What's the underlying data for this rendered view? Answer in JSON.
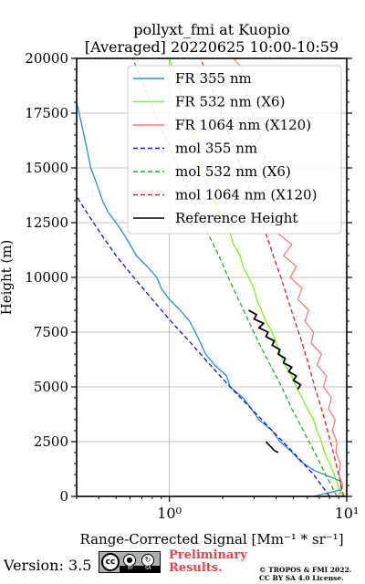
{
  "chart_data": {
    "type": "line",
    "title_line1": "pollyxt_fmi at Kuopio",
    "title_line2": "[Averaged] 20220625 10:00-10:59",
    "xlabel": "Range-Corrected Signal [Mm⁻¹ * sr⁻¹]",
    "ylabel": "Height (m)",
    "x_scale": "log",
    "xlim": [
      0.3,
      10
    ],
    "ylim": [
      0,
      20000
    ],
    "x_ticks": [
      1,
      10
    ],
    "x_tick_labels": [
      "10⁰",
      "10¹"
    ],
    "y_ticks": [
      0,
      2500,
      5000,
      7500,
      10000,
      12500,
      15000,
      17500,
      20000
    ],
    "y_tick_labels": [
      "0",
      "2500",
      "5000",
      "7500",
      "10000",
      "12500",
      "15000",
      "17500",
      "20000"
    ],
    "grid": true,
    "legend_position": "top-right",
    "series": [
      {
        "name": "FR 355 nm",
        "color": "#1f8fe6",
        "style": "solid",
        "points": [
          [
            6.5,
            0
          ],
          [
            9.3,
            300
          ],
          [
            9.2,
            700
          ],
          [
            6.5,
            1200
          ],
          [
            5.5,
            1600
          ],
          [
            4.8,
            2100
          ],
          [
            4.2,
            2500
          ],
          [
            3.8,
            3000
          ],
          [
            3.2,
            3500
          ],
          [
            2.9,
            4000
          ],
          [
            2.6,
            4500
          ],
          [
            2.2,
            5000
          ],
          [
            2.1,
            5500
          ],
          [
            1.8,
            6000
          ],
          [
            1.6,
            6500
          ],
          [
            1.5,
            7000
          ],
          [
            1.4,
            7500
          ],
          [
            1.3,
            8000
          ],
          [
            1.15,
            8500
          ],
          [
            1.0,
            9000
          ],
          [
            0.9,
            9500
          ],
          [
            0.85,
            10000
          ],
          [
            0.75,
            10500
          ],
          [
            0.65,
            11000
          ],
          [
            0.6,
            11500
          ],
          [
            0.55,
            12000
          ],
          [
            0.5,
            12500
          ],
          [
            0.45,
            13000
          ],
          [
            0.42,
            13500
          ],
          [
            0.4,
            14000
          ],
          [
            0.38,
            14500
          ],
          [
            0.36,
            15000
          ],
          [
            0.35,
            15500
          ],
          [
            0.34,
            16000
          ],
          [
            0.33,
            16500
          ],
          [
            0.32,
            17000
          ],
          [
            0.31,
            17500
          ],
          [
            0.3,
            18000
          ]
        ]
      },
      {
        "name": "FR 532 nm (X6)",
        "color": "#7cf218",
        "style": "solid",
        "points": [
          [
            9.5,
            0
          ],
          [
            9.0,
            400
          ],
          [
            8.5,
            1000
          ],
          [
            8.0,
            1500
          ],
          [
            7.5,
            2000
          ],
          [
            7.2,
            2500
          ],
          [
            6.8,
            3000
          ],
          [
            6.5,
            3500
          ],
          [
            6.0,
            4000
          ],
          [
            5.6,
            4500
          ],
          [
            5.2,
            5000
          ],
          [
            4.9,
            5500
          ],
          [
            4.5,
            6000
          ],
          [
            4.2,
            6500
          ],
          [
            4.0,
            7000
          ],
          [
            3.8,
            7500
          ],
          [
            3.5,
            8000
          ],
          [
            3.3,
            8500
          ],
          [
            3.1,
            9000
          ],
          [
            3.0,
            9500
          ],
          [
            2.8,
            10000
          ],
          [
            2.6,
            10500
          ],
          [
            2.5,
            11000
          ],
          [
            2.3,
            11500
          ],
          [
            2.2,
            12000
          ],
          [
            2.0,
            12500
          ],
          [
            1.9,
            13000
          ],
          [
            1.8,
            13500
          ],
          [
            1.7,
            14000
          ],
          [
            1.6,
            14500
          ],
          [
            1.5,
            15000
          ],
          [
            1.45,
            15500
          ],
          [
            1.4,
            16000
          ],
          [
            1.35,
            16500
          ],
          [
            1.3,
            17000
          ],
          [
            1.25,
            17500
          ],
          [
            1.2,
            18000
          ],
          [
            1.15,
            18500
          ],
          [
            1.1,
            19000
          ],
          [
            1.05,
            19500
          ],
          [
            1.0,
            20000
          ]
        ]
      },
      {
        "name": "FR 1064 nm (X120)",
        "color": "#f87a7a",
        "style": "solid",
        "points": [
          [
            9.0,
            0
          ],
          [
            9.5,
            500
          ],
          [
            9.0,
            1000
          ],
          [
            9.2,
            1500
          ],
          [
            8.7,
            2000
          ],
          [
            8.8,
            2500
          ],
          [
            8.3,
            3000
          ],
          [
            8.6,
            3500
          ],
          [
            7.9,
            4000
          ],
          [
            8.2,
            4500
          ],
          [
            7.4,
            5000
          ],
          [
            7.7,
            5500
          ],
          [
            6.8,
            6000
          ],
          [
            7.2,
            6500
          ],
          [
            6.3,
            7000
          ],
          [
            6.5,
            7500
          ],
          [
            5.8,
            8000
          ],
          [
            6.1,
            8500
          ],
          [
            5.3,
            9000
          ],
          [
            5.6,
            9500
          ],
          [
            4.8,
            10000
          ],
          [
            5.2,
            10500
          ],
          [
            4.4,
            11000
          ],
          [
            4.9,
            11500
          ],
          [
            4.1,
            12000
          ],
          [
            4.5,
            12500
          ],
          [
            3.8,
            13000
          ],
          [
            4.2,
            13500
          ],
          [
            3.5,
            14000
          ],
          [
            3.9,
            14500
          ],
          [
            3.2,
            15000
          ],
          [
            3.5,
            15500
          ],
          [
            3.0,
            16000
          ],
          [
            3.3,
            16500
          ],
          [
            2.8,
            17000
          ],
          [
            3.0,
            17500
          ],
          [
            2.6,
            18000
          ],
          [
            2.8,
            18500
          ],
          [
            2.4,
            19000
          ],
          [
            2.6,
            19500
          ],
          [
            2.3,
            20000
          ]
        ]
      },
      {
        "name": "mol 355 nm",
        "color": "#1010d0",
        "style": "dashed",
        "points": [
          [
            8.0,
            0
          ],
          [
            6.5,
            1000
          ],
          [
            5.0,
            2000
          ],
          [
            3.8,
            3000
          ],
          [
            2.9,
            4000
          ],
          [
            2.2,
            5000
          ],
          [
            1.7,
            6000
          ],
          [
            1.32,
            7000
          ],
          [
            1.02,
            8000
          ],
          [
            0.8,
            9000
          ],
          [
            0.63,
            10000
          ],
          [
            0.5,
            11000
          ],
          [
            0.41,
            12000
          ],
          [
            0.34,
            13000
          ],
          [
            0.3,
            13700
          ]
        ]
      },
      {
        "name": "mol 532 nm (X6)",
        "color": "#20b020",
        "style": "dashed",
        "points": [
          [
            8.8,
            0
          ],
          [
            7.6,
            1000
          ],
          [
            6.6,
            2000
          ],
          [
            5.7,
            3000
          ],
          [
            4.9,
            4000
          ],
          [
            4.3,
            5000
          ],
          [
            3.7,
            6000
          ],
          [
            3.2,
            7000
          ],
          [
            2.8,
            8000
          ],
          [
            2.45,
            9000
          ],
          [
            2.15,
            10000
          ],
          [
            1.9,
            11000
          ],
          [
            1.65,
            12000
          ],
          [
            1.45,
            13000
          ],
          [
            1.28,
            14000
          ],
          [
            1.12,
            15000
          ],
          [
            1.0,
            16000
          ],
          [
            0.88,
            17000
          ],
          [
            0.78,
            18000
          ],
          [
            0.7,
            19000
          ],
          [
            0.62,
            20000
          ]
        ]
      },
      {
        "name": "mol 1064 nm (X120)",
        "color": "#e02020",
        "style": "dashed",
        "points": [
          [
            9.6,
            0
          ],
          [
            9.0,
            1000
          ],
          [
            8.4,
            2000
          ],
          [
            7.8,
            3000
          ],
          [
            7.2,
            4000
          ],
          [
            6.6,
            5000
          ],
          [
            6.1,
            6000
          ],
          [
            5.6,
            7000
          ],
          [
            5.1,
            8000
          ],
          [
            4.65,
            9000
          ],
          [
            4.25,
            10000
          ],
          [
            3.85,
            11000
          ],
          [
            3.5,
            12000
          ],
          [
            3.15,
            13000
          ],
          [
            2.85,
            14000
          ],
          [
            2.55,
            15000
          ],
          [
            2.3,
            16000
          ],
          [
            2.07,
            17000
          ],
          [
            1.86,
            18000
          ],
          [
            1.67,
            19000
          ],
          [
            1.5,
            20000
          ]
        ]
      },
      {
        "name": "Reference Height",
        "color": "#000000",
        "style": "solid",
        "points": [
          [
            2.8,
            8500
          ],
          [
            3.1,
            8300
          ],
          [
            3.0,
            8100
          ],
          [
            3.4,
            7900
          ],
          [
            3.2,
            7700
          ],
          [
            3.6,
            7500
          ],
          [
            3.5,
            7300
          ],
          [
            3.9,
            7100
          ],
          [
            3.8,
            6900
          ],
          [
            4.2,
            6700
          ],
          [
            4.1,
            6500
          ],
          [
            4.5,
            6300
          ],
          [
            4.4,
            6100
          ],
          [
            4.9,
            5900
          ],
          [
            4.7,
            5700
          ],
          [
            5.2,
            5500
          ],
          [
            5.0,
            5300
          ],
          [
            5.5,
            5100
          ],
          [
            5.3,
            4900
          ]
        ]
      }
    ],
    "secondary_segments": [
      {
        "series": "FR 355 nm",
        "color": "#000000",
        "points": [
          [
            3.5,
            2500
          ],
          [
            3.7,
            2300
          ],
          [
            3.9,
            2100
          ],
          [
            4.1,
            2000
          ]
        ]
      }
    ]
  },
  "footer": {
    "version": "Version: 3.5",
    "license_badge": {
      "cc": "cc",
      "bar_left": "BY",
      "bar_right": "SA"
    },
    "preliminary_line1": "Preliminary",
    "preliminary_line2": "Results.",
    "copyright_line1": "© TROPOS & FMI 2022.",
    "copyright_line2": "CC BY SA 4.0 License."
  },
  "colors": {
    "preliminary": "#e8434a",
    "grid": "#b0b0b0"
  }
}
